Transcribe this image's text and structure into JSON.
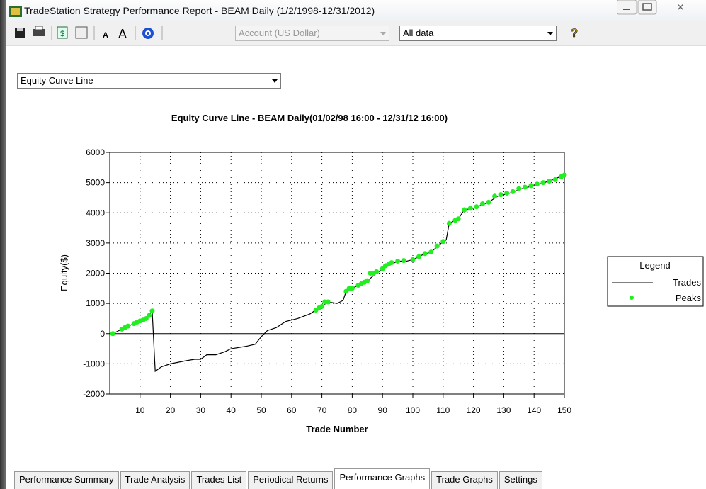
{
  "window": {
    "title": "TradeStation Strategy Performance Report - BEAM Daily (1/2/1998-12/31/2012)"
  },
  "toolbar": {
    "account": "Account (US Dollar)",
    "range": "All data"
  },
  "graph_selector": "Equity Curve Line",
  "chart_data": {
    "type": "line",
    "title": "Equity Curve Line - BEAM Daily(01/02/98 16:00 - 12/31/12 16:00)",
    "x_label": "Trade Number",
    "y_label": "Equity($)",
    "xlim": [
      0,
      150
    ],
    "ylim": [
      -2000,
      6000
    ],
    "xticks": [
      10,
      20,
      30,
      40,
      50,
      60,
      70,
      80,
      90,
      100,
      110,
      120,
      130,
      140,
      150
    ],
    "yticks": [
      -2000,
      -1000,
      0,
      1000,
      2000,
      3000,
      4000,
      5000,
      6000
    ],
    "grid": true,
    "legend": {
      "title": "Legend",
      "position": "right"
    },
    "series": [
      {
        "name": "Trades",
        "color": "#000000",
        "marker": "line",
        "x": [
          1,
          3,
          5,
          8,
          10,
          12,
          14,
          15,
          17,
          20,
          25,
          28,
          30,
          32,
          35,
          38,
          40,
          45,
          48,
          50,
          52,
          55,
          58,
          62,
          66,
          68,
          70,
          72,
          75,
          77,
          78,
          80,
          85,
          88,
          92,
          95,
          98,
          100,
          103,
          106,
          110,
          111,
          112,
          115,
          117,
          120,
          125,
          128,
          132,
          136,
          140,
          145,
          150
        ],
        "values": [
          0,
          100,
          200,
          330,
          400,
          500,
          750,
          -1250,
          -1100,
          -1000,
          -900,
          -850,
          -850,
          -700,
          -700,
          -600,
          -500,
          -420,
          -350,
          -100,
          100,
          200,
          400,
          500,
          650,
          780,
          900,
          1050,
          1000,
          1100,
          1400,
          1500,
          1750,
          2000,
          2250,
          2400,
          2400,
          2450,
          2600,
          2700,
          3050,
          3100,
          3650,
          3800,
          4100,
          4150,
          4350,
          4550,
          4650,
          4800,
          4900,
          5050,
          5250
        ]
      },
      {
        "name": "Peaks",
        "color": "#22ee22",
        "marker": "dot",
        "x": [
          1,
          4,
          5,
          6,
          8,
          9,
          10,
          11,
          12,
          13,
          14,
          68,
          69,
          70,
          71,
          72,
          78,
          79,
          80,
          82,
          83,
          84,
          85,
          86,
          87,
          88,
          90,
          91,
          92,
          93,
          95,
          97,
          100,
          102,
          104,
          106,
          108,
          110,
          112,
          114,
          115,
          117,
          119,
          121,
          123,
          125,
          127,
          129,
          131,
          133,
          135,
          137,
          139,
          141,
          143,
          145,
          147,
          149,
          150
        ],
        "values": [
          0,
          150,
          200,
          250,
          330,
          380,
          420,
          450,
          500,
          600,
          750,
          780,
          850,
          900,
          1050,
          1050,
          1400,
          1500,
          1500,
          1600,
          1650,
          1700,
          1750,
          2000,
          2000,
          2050,
          2150,
          2250,
          2300,
          2350,
          2400,
          2420,
          2450,
          2550,
          2650,
          2700,
          2900,
          3050,
          3650,
          3750,
          3800,
          4100,
          4150,
          4200,
          4300,
          4350,
          4550,
          4600,
          4650,
          4700,
          4800,
          4850,
          4900,
          4950,
          5000,
          5050,
          5100,
          5200,
          5250
        ]
      }
    ]
  },
  "tabs": [
    "Performance Summary",
    "Trade Analysis",
    "Trades List",
    "Periodical Returns",
    "Performance Graphs",
    "Trade Graphs",
    "Settings"
  ],
  "active_tab": 4
}
